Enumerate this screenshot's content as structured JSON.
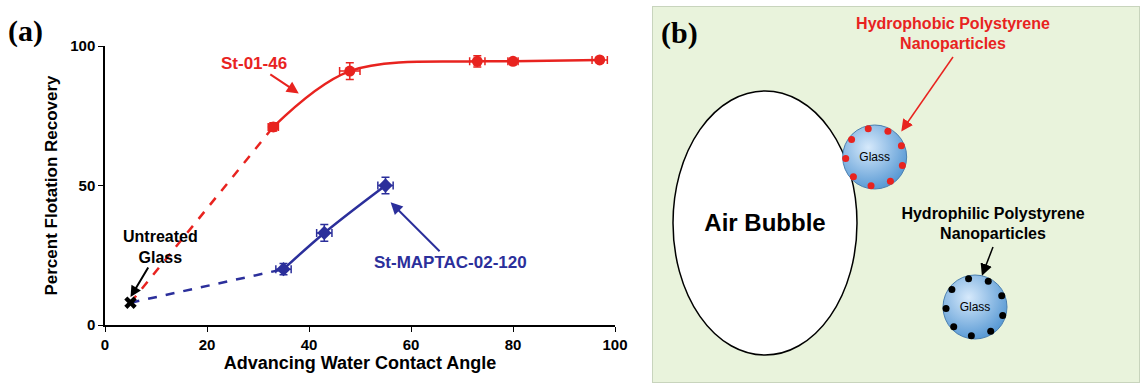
{
  "chart_data": {
    "type": "scatter",
    "panel": "(a)",
    "x_label": "Advancing Water Contact Angle",
    "y_label": "Percent Flotation Recovery",
    "xlim": [
      0,
      100
    ],
    "ylim": [
      0,
      100
    ],
    "xticks": [
      0,
      20,
      40,
      60,
      80,
      100
    ],
    "yticks": [
      0,
      50,
      100
    ],
    "grid": false,
    "reference": {
      "name": "Untreated Glass",
      "x": 5,
      "value": 8,
      "marker": "x",
      "color": "#000000"
    },
    "series": [
      {
        "name": "St-01-46",
        "color": "#e8231f",
        "marker": "circle",
        "line_style": "solid",
        "x": [
          33,
          48,
          73,
          80,
          97
        ],
        "values": [
          71,
          91,
          94.5,
          94.5,
          95
        ],
        "x_errors": [
          1,
          2,
          1.5,
          1,
          1.5
        ],
        "y_errors": [
          1.5,
          3,
          2,
          1,
          1
        ]
      },
      {
        "name": "St-MAPTAC-02-120",
        "color": "#2b2f9b",
        "marker": "diamond",
        "line_style": "solid",
        "x": [
          35,
          43,
          55
        ],
        "values": [
          20,
          33,
          50
        ],
        "x_errors": [
          1.5,
          1.5,
          1.5
        ],
        "y_errors": [
          2,
          3,
          3
        ]
      }
    ]
  },
  "diagram": {
    "panel": "(b)",
    "bubble": "Air Bubble",
    "particles": [
      {
        "label": "Hydrophobic Polystyrene Nanoparticles",
        "color": "#e8231f",
        "glass": "Glass",
        "attached": true
      },
      {
        "label": "Hydrophilic Polystyrene Nanoparticles",
        "color": "#000000",
        "glass": "Glass",
        "attached": false
      }
    ]
  }
}
